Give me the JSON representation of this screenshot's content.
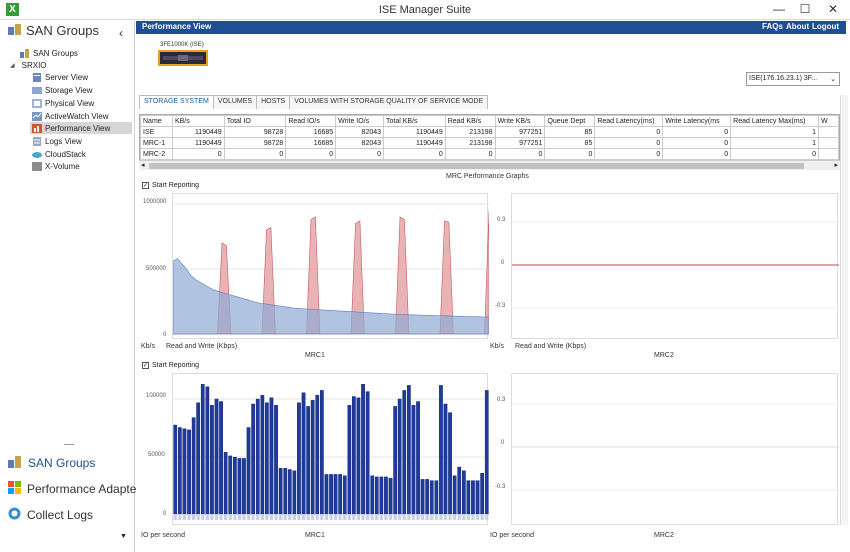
{
  "window": {
    "title": "ISE Manager Suite",
    "minimize": "—",
    "maximize": "☐",
    "close": "✕"
  },
  "sidebar": {
    "header": "SAN Groups",
    "collapse_icon": "‹",
    "items": [
      {
        "label": "SAN Groups"
      },
      {
        "label": "SRXIO"
      },
      {
        "label": "Server View"
      },
      {
        "label": "Storage View"
      },
      {
        "label": "Physical View"
      },
      {
        "label": "ActiveWatch View"
      },
      {
        "label": "Performance View"
      },
      {
        "label": "Logs View"
      },
      {
        "label": "CloudStack"
      },
      {
        "label": "X-Volume"
      }
    ],
    "bottom_nav": [
      {
        "label": "SAN Groups"
      },
      {
        "label": "Performance Adapter"
      },
      {
        "label": "Collect Logs"
      }
    ]
  },
  "header": {
    "title": "Performance View",
    "links": [
      "FAQs",
      "About",
      "Logout"
    ]
  },
  "device": {
    "label": "3FE1000K (ISE)",
    "select_value": "ISE(176.16.23.1) 3F..."
  },
  "tabs": [
    "STORAGE SYSTEM",
    "VOLUMES",
    "HOSTS",
    "VOLUMES WITH STORAGE QUALITY OF SERVICE MODE"
  ],
  "table": {
    "columns": [
      "Name",
      "KB/s",
      "Total IO",
      "Read IO/s",
      "Write IO/s",
      "Total KB/s",
      "Read KB/s",
      "Write KB/s",
      "Queue Dept",
      "Read Latency(ms)",
      "Write Latency(ms",
      "Read Latency Max(ms)",
      "W"
    ],
    "rows": [
      [
        "ISE",
        "1190449",
        "98728",
        "16685",
        "82043",
        "1190449",
        "213198",
        "977251",
        "85",
        "0",
        "0",
        "1",
        ""
      ],
      [
        "MRC-1",
        "1190449",
        "98728",
        "16685",
        "82043",
        "1190449",
        "213198",
        "977251",
        "85",
        "0",
        "0",
        "1",
        ""
      ],
      [
        "MRC-2",
        "0",
        "0",
        "0",
        "0",
        "0",
        "0",
        "0",
        "0",
        "0",
        "0",
        "0",
        ""
      ]
    ]
  },
  "graphs_title": "MRC Performance Graphs",
  "start_reporting": "Start Reporting",
  "kb_section": {
    "mrc1": {
      "ylabel": "Kb/s",
      "legend": "Read and Write (Kbps)",
      "name": "MRC1",
      "yticks": [
        "1000000",
        "500000",
        "0"
      ]
    },
    "mrc2": {
      "ylabel": "Kb/s",
      "legend": "Read and Write (Kbps)",
      "name": "MRC2",
      "yticks": [
        "0.3",
        "0",
        "-0.3"
      ]
    }
  },
  "io_section": {
    "mrc1": {
      "ylabel": "IO per second",
      "name": "MRC1",
      "yticks": [
        "100000",
        "50000",
        "0"
      ]
    },
    "mrc2": {
      "ylabel": "IO per second",
      "name": "MRC2",
      "yticks": [
        "0.3",
        "0",
        "-0.3"
      ]
    }
  },
  "chart_data": [
    {
      "type": "area",
      "name": "MRC1 Kb/s",
      "ylim": [
        0,
        1000000
      ],
      "series": [
        {
          "name": "Read",
          "color": "#e3a0a4",
          "values": [
            0,
            0,
            0,
            0,
            0,
            0,
            0,
            0,
            0,
            0,
            0,
            700000,
            680000,
            0,
            0,
            0,
            0,
            0,
            0,
            0,
            0,
            800000,
            820000,
            0,
            0,
            0,
            0,
            0,
            0,
            0,
            0,
            880000,
            900000,
            0,
            0,
            0,
            0,
            0,
            0,
            0,
            0,
            850000,
            870000,
            0,
            0,
            0,
            0,
            0,
            0,
            0,
            0,
            900000,
            880000,
            0,
            0,
            0,
            0,
            0,
            0,
            0,
            0,
            870000,
            860000,
            0,
            0,
            0,
            0,
            0,
            0,
            0,
            0,
            950000
          ]
        },
        {
          "name": "Write",
          "color": "#8ea9d4",
          "values": [
            560000,
            580000,
            540000,
            500000,
            450000,
            420000,
            400000,
            380000,
            360000,
            340000,
            330000,
            320000,
            310000,
            300000,
            290000,
            280000,
            270000,
            260000,
            250000,
            240000,
            235000,
            230000,
            225000,
            220000,
            215000,
            210000,
            205000,
            200000,
            198000,
            195000,
            192000,
            190000,
            188000,
            186000,
            184000,
            182000,
            180000,
            178000,
            176000,
            174000,
            172000,
            170000,
            168000,
            166000,
            164000,
            162000,
            160000,
            158000,
            156000,
            154000,
            152000,
            150000,
            149000,
            148000,
            147000,
            146000,
            145000,
            144000,
            143000,
            142000,
            141000,
            140000,
            139000,
            138000,
            137000,
            136000,
            135000,
            134000,
            133000,
            132000,
            131000,
            130000
          ]
        }
      ]
    },
    {
      "type": "bar",
      "name": "MRC1 IO per second",
      "ylim": [
        0,
        110000
      ],
      "values": [
        72000,
        70000,
        69000,
        68000,
        78000,
        90000,
        105000,
        103000,
        88000,
        93000,
        91000,
        50000,
        47000,
        46000,
        45000,
        45000,
        70000,
        89000,
        93000,
        96000,
        90000,
        94000,
        88000,
        37000,
        37000,
        36000,
        35000,
        90000,
        98000,
        87000,
        92000,
        96000,
        100000,
        32000,
        32000,
        32000,
        32000,
        31000,
        88000,
        95000,
        94000,
        105000,
        99000,
        31000,
        30000,
        30000,
        30000,
        29000,
        87000,
        93000,
        100000,
        104000,
        88000,
        91000,
        28000,
        28000,
        27000,
        27000,
        104000,
        89000,
        82000,
        31000,
        38000,
        35000,
        27000,
        27000,
        27000,
        33000,
        100000
      ]
    }
  ]
}
